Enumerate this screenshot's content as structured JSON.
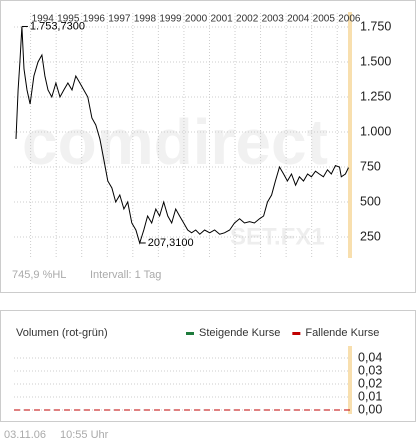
{
  "chart_data": [
    {
      "type": "line",
      "xlim": [
        1993.35,
        2006.5
      ],
      "xticks": [
        1994,
        1995,
        1996,
        1997,
        1998,
        1999,
        2000,
        2001,
        2002,
        2003,
        2004,
        2005,
        2006
      ],
      "ylim": [
        100,
        1850
      ],
      "yticks": [
        {
          "value": 1750,
          "label": "1.750"
        },
        {
          "value": 1500,
          "label": "1.500"
        },
        {
          "value": 1250,
          "label": "1.250"
        },
        {
          "value": 1000,
          "label": "1.000"
        },
        750,
        500,
        250
      ],
      "grid": true,
      "series": [
        {
          "color": "#000000",
          "x": [
            1993.43,
            1993.51,
            1993.58,
            1993.66,
            1993.74,
            1993.86,
            1993.98,
            1994.13,
            1994.29,
            1994.44,
            1994.56,
            1994.68,
            1994.83,
            1994.99,
            1995.15,
            1995.3,
            1995.46,
            1995.62,
            1995.77,
            1995.93,
            1996.08,
            1996.24,
            1996.4,
            1996.55,
            1996.71,
            1996.87,
            1997.02,
            1997.18,
            1997.33,
            1997.49,
            1997.65,
            1997.8,
            1997.96,
            1998.12,
            1998.27,
            1998.43,
            1998.58,
            1998.74,
            1998.9,
            1999.05,
            1999.21,
            1999.37,
            1999.52,
            1999.68,
            1999.83,
            1999.99,
            2000.15,
            2000.3,
            2000.46,
            2000.62,
            2000.81,
            2001.01,
            2001.2,
            2001.4,
            2001.59,
            2001.79,
            2001.98,
            2002.18,
            2002.37,
            2002.57,
            2002.76,
            2002.96,
            2003.12,
            2003.27,
            2003.43,
            2003.58,
            2003.74,
            2003.9,
            2004.05,
            2004.21,
            2004.37,
            2004.52,
            2004.68,
            2004.84,
            2004.99,
            2005.15,
            2005.3,
            2005.46,
            2005.62,
            2005.77,
            2005.93,
            2006.09,
            2006.16,
            2006.32,
            2006.44
          ],
          "values": [
            950,
            1300,
            1500,
            1753.73,
            1450,
            1300,
            1200,
            1400,
            1500,
            1550,
            1400,
            1300,
            1250,
            1350,
            1250,
            1300,
            1350,
            1300,
            1400,
            1350,
            1300,
            1250,
            1100,
            1050,
            950,
            800,
            650,
            600,
            500,
            550,
            450,
            500,
            350,
            300,
            207.31,
            300,
            400,
            350,
            450,
            400,
            500,
            400,
            350,
            450,
            400,
            350,
            300,
            280,
            300,
            270,
            300,
            280,
            300,
            270,
            280,
            300,
            350,
            380,
            350,
            360,
            350,
            380,
            400,
            500,
            550,
            650,
            750,
            700,
            650,
            700,
            620,
            680,
            650,
            700,
            680,
            720,
            700,
            680,
            730,
            700,
            760,
            750,
            680,
            700,
            745.9
          ]
        }
      ],
      "annotations": [
        {
          "text": "1.753,7300",
          "x": 1993.66,
          "y": 1753.73
        },
        {
          "text": "207,3100",
          "x": 1998.27,
          "y": 207.31
        }
      ],
      "watermark": [
        "comdirect",
        "SET.FX1"
      ],
      "info": [
        "745,9 %HL",
        "Intervall: 1 Tag"
      ]
    },
    {
      "type": "bar",
      "title": "Volumen (rot-grün)",
      "ylim": [
        0,
        0.04
      ],
      "yticks": [
        {
          "value": 0.04,
          "label": "0,04"
        },
        {
          "value": 0.03,
          "label": "0,03"
        },
        {
          "value": 0.02,
          "label": "0,02"
        },
        {
          "value": 0.01,
          "label": "0,01"
        },
        {
          "value": 0,
          "label": "0,00"
        }
      ],
      "grid": true,
      "series": [
        {
          "name": "Steigende Kurse",
          "color": "#1e7b3c"
        },
        {
          "name": "Fallende Kurse",
          "color": "#c00000"
        }
      ]
    }
  ],
  "footer": {
    "date": "03.11.06",
    "time": "10:55 Uhr"
  }
}
